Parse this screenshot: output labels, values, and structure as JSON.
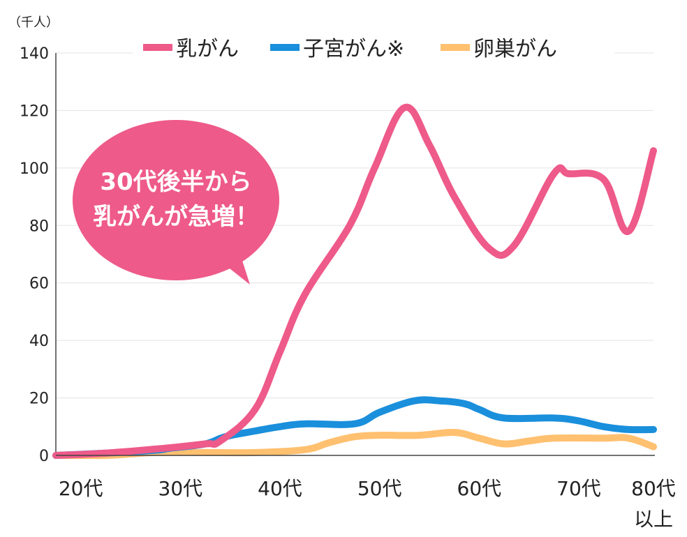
{
  "chart_data": {
    "type": "line",
    "unit_label": "（千人）",
    "ylim": [
      0,
      140
    ],
    "yticks": [
      "0",
      "20",
      "40",
      "60",
      "80",
      "100",
      "120",
      "140"
    ],
    "ytick_values": [
      0,
      20,
      40,
      60,
      80,
      100,
      120,
      140
    ],
    "categories": [
      {
        "line1": "20代",
        "line2": ""
      },
      {
        "line1": "30代",
        "line2": ""
      },
      {
        "line1": "40代",
        "line2": ""
      },
      {
        "line1": "50代",
        "line2": ""
      },
      {
        "line1": "60代",
        "line2": ""
      },
      {
        "line1": "70代",
        "line2": ""
      },
      {
        "line1": "80代",
        "line2": "以上"
      }
    ],
    "x_range": [
      0,
      12
    ],
    "category_positions": [
      0.5,
      2.5,
      4.5,
      6.5,
      8.5,
      10.5,
      12
    ],
    "series": [
      {
        "name": "乳がん",
        "color": "#ee5a8a",
        "x": [
          0,
          1,
          2,
          3,
          3.3,
          4,
          4.5,
          5,
          5.9,
          6.4,
          7,
          7.5,
          8,
          8.7,
          9.2,
          10,
          10.3,
          11,
          11.5,
          12
        ],
        "values": [
          0,
          0.8,
          2.2,
          4,
          5,
          16,
          36,
          56,
          80,
          100,
          121,
          108,
          90,
          72,
          73,
          98,
          98,
          96,
          78,
          106
        ]
      },
      {
        "name": "子宮がん※",
        "color": "#1a8fdc",
        "x": [
          0,
          1,
          2,
          2.3,
          3,
          3.4,
          4,
          4.5,
          5,
          6,
          6.5,
          7.2,
          7.7,
          8.2,
          8.5,
          9,
          10,
          10.5,
          11,
          11.5,
          12
        ],
        "values": [
          0,
          0.8,
          1.8,
          2.5,
          4,
          6.5,
          8.5,
          10,
          11,
          11,
          15,
          19,
          19,
          18,
          16,
          13,
          13,
          12,
          10,
          9,
          9
        ]
      },
      {
        "name": "卵巣がん",
        "color": "#ffc070",
        "x": [
          0,
          1,
          1.5,
          2,
          3,
          4,
          5,
          5.5,
          6,
          6.5,
          7.3,
          8,
          8.5,
          9,
          9.5,
          10,
          11,
          11.5,
          12
        ],
        "values": [
          0,
          0,
          0.5,
          1,
          1,
          1,
          2,
          4.5,
          6.5,
          7,
          7,
          8,
          6,
          4,
          5,
          6,
          6,
          6,
          3
        ]
      }
    ],
    "annotation": {
      "line1": "30代後半から",
      "line2": "乳がんが急増！",
      "color": "#ee5a8a"
    }
  }
}
